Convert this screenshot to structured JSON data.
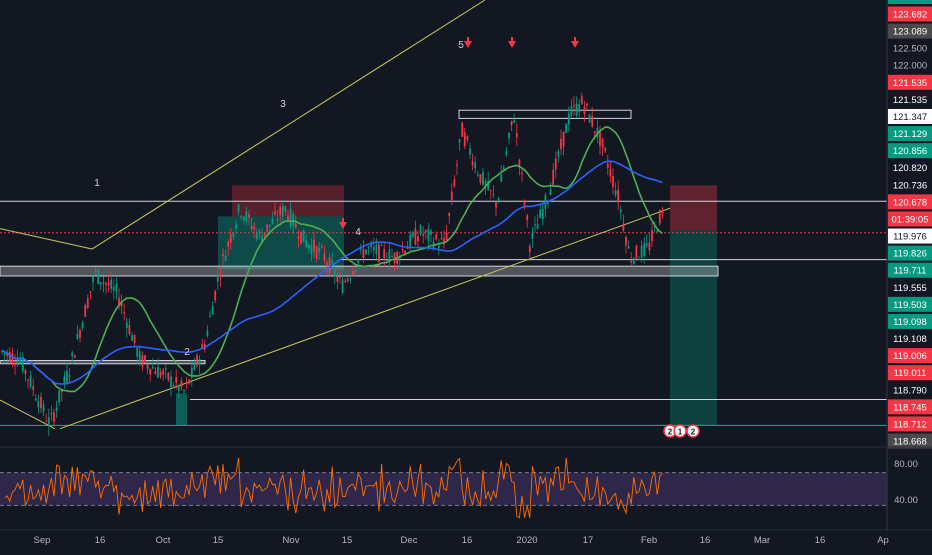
{
  "chart_data": {
    "type": "candlestick",
    "title": "",
    "x_tick_labels": [
      "Sep",
      "16",
      "Oct",
      "15",
      "Nov",
      "15",
      "Dec",
      "16",
      "2020",
      "17",
      "Feb",
      "16",
      "Mar",
      "16",
      "Ap"
    ],
    "price_axis": {
      "range": [
        118.55,
        124.0
      ],
      "labels": [
        {
          "text": "123.682",
          "color": "#f23645"
        },
        {
          "text": "123.089",
          "color": "#4a4a4a"
        },
        {
          "text": "122.500",
          "color": null
        },
        {
          "text": "122.000",
          "color": null
        },
        {
          "text": "121.535",
          "color": "#f23645"
        },
        {
          "text": "121.535",
          "color": "#131722"
        },
        {
          "text": "121.347",
          "color": "#ffffff"
        },
        {
          "text": "121.129",
          "color": "#089981"
        },
        {
          "text": "120.856",
          "color": "#089981"
        },
        {
          "text": "120.820",
          "color": "#131722"
        },
        {
          "text": "120.736",
          "color": "#131722"
        },
        {
          "text": "120.678",
          "color": "#f23645"
        },
        {
          "text": "01:39:05",
          "color": "#f23645"
        },
        {
          "text": "119.976",
          "color": "#ffffff"
        },
        {
          "text": "119.826",
          "color": "#089981"
        },
        {
          "text": "119.711",
          "color": "#089981"
        },
        {
          "text": "119.555",
          "color": "#131722"
        },
        {
          "text": "119.503",
          "color": "#089981"
        },
        {
          "text": "119.098",
          "color": "#089981"
        },
        {
          "text": "119.108",
          "color": "#131722"
        },
        {
          "text": "119.006",
          "color": "#f23645"
        },
        {
          "text": "119.011",
          "color": "#f23645"
        },
        {
          "text": "118.790",
          "color": "#131722"
        },
        {
          "text": "118.745",
          "color": "#f23645"
        },
        {
          "text": "118.712",
          "color": "#f23645"
        },
        {
          "text": "118.668",
          "color": "#4a4a4a"
        }
      ]
    },
    "annotations": [
      "1",
      "2",
      "3",
      "4",
      "5"
    ],
    "rsi": {
      "labels": [
        "80.00",
        "40.00"
      ],
      "levels": [
        70,
        30
      ],
      "range": [
        0,
        100
      ]
    },
    "event_badges": [
      "2",
      "1",
      "2"
    ],
    "colors": {
      "up": "#089981",
      "down": "#f23645",
      "ma_fast": "#4caf50",
      "ma_slow": "#2962ff",
      "channel": "#c9c75a",
      "rsi": "#ff6d00"
    }
  }
}
